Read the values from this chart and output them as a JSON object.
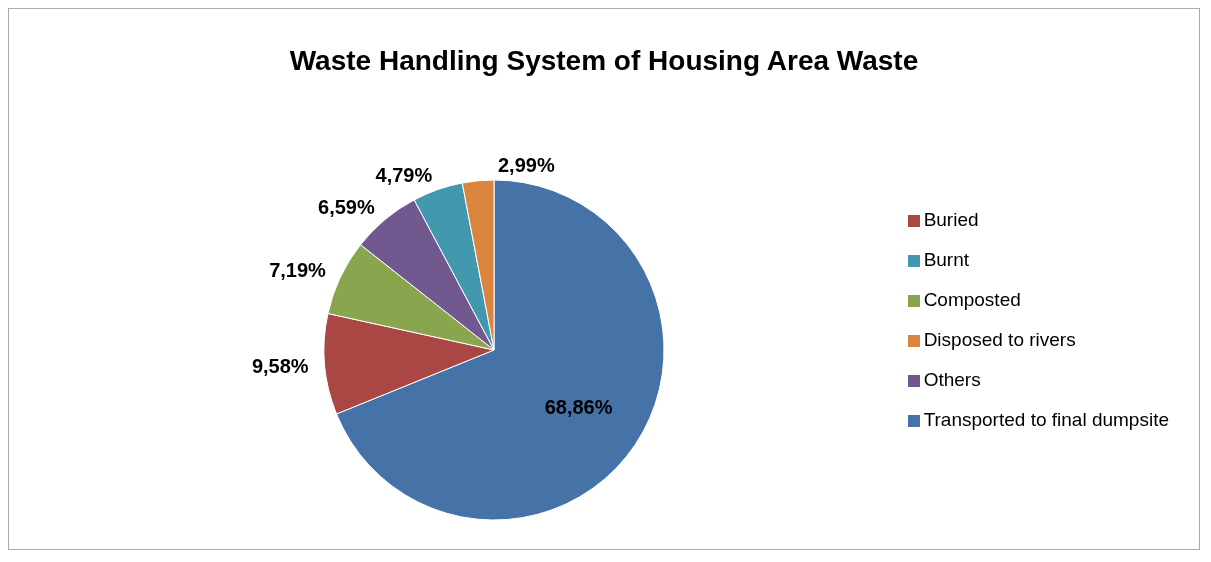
{
  "chart_data": {
    "type": "pie",
    "title": "Waste Handling System of Housing Area Waste",
    "categories": [
      "Transported to final dumpsite",
      "Buried",
      "Composted",
      "Others",
      "Burnt",
      "Disposed to rivers"
    ],
    "values": [
      68.86,
      9.58,
      7.19,
      6.59,
      4.79,
      2.99
    ],
    "value_labels": [
      "68,86%",
      "9,58%",
      "7,19%",
      "6,59%",
      "4,79%",
      "2,99%"
    ],
    "colors": [
      "#4572a7",
      "#aa4643",
      "#89a54e",
      "#71588f",
      "#4198af",
      "#db843d"
    ],
    "legend": "right"
  }
}
